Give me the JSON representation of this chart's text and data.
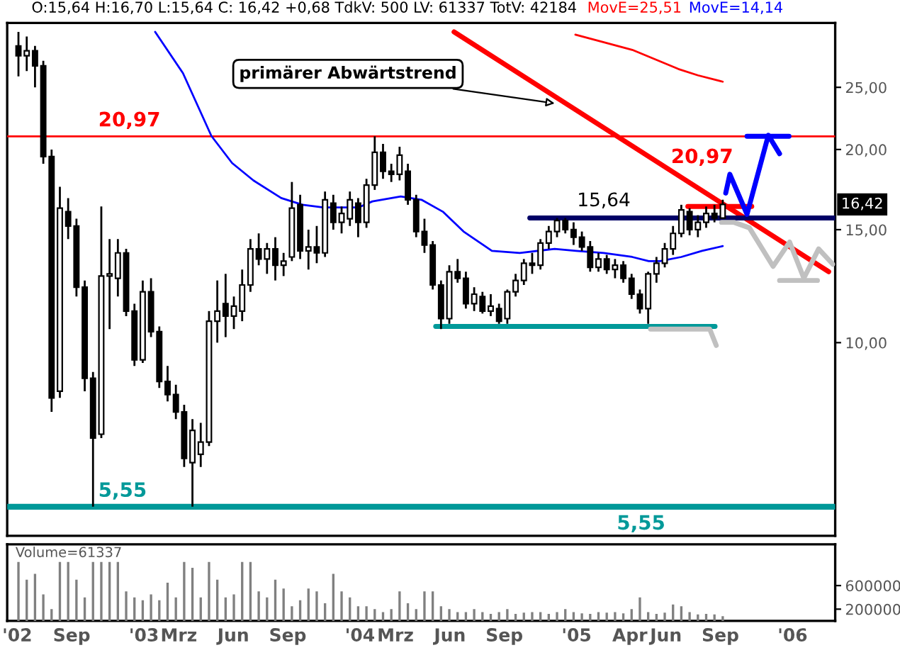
{
  "chart_data": [
    {
      "type": "candlestick",
      "title": "O:15,64 H:16,70 L:15,64 C: 16,42 +0,68 TdkV: 500 LV: 61337 TotV: 42184",
      "x": [
        "2002-06-03",
        "2002-06-17",
        "2002-07-01",
        "2002-07-15",
        "2002-07-29",
        "2002-08-12",
        "2002-08-26",
        "2002-09-09",
        "2002-09-23",
        "2002-10-07",
        "2002-10-21",
        "2002-11-04",
        "2002-11-18",
        "2002-12-02",
        "2002-12-16",
        "2002-12-30",
        "2003-01-13",
        "2003-01-27",
        "2003-02-10",
        "2003-02-24",
        "2003-03-10",
        "2003-03-24",
        "2003-04-07",
        "2003-04-21",
        "2003-05-05",
        "2003-05-19",
        "2003-06-02",
        "2003-06-16",
        "2003-06-30",
        "2003-07-14",
        "2003-07-28",
        "2003-08-11",
        "2003-08-25",
        "2003-09-08",
        "2003-09-22",
        "2003-10-06",
        "2003-10-20",
        "2003-11-03",
        "2003-11-17",
        "2003-12-01",
        "2003-12-15",
        "2003-12-29",
        "2004-01-12",
        "2004-01-26",
        "2004-02-09",
        "2004-02-23",
        "2004-03-08",
        "2004-03-22",
        "2004-04-05",
        "2004-04-19",
        "2004-05-03",
        "2004-05-17",
        "2004-05-31",
        "2004-06-14",
        "2004-06-28",
        "2004-07-12",
        "2004-07-26",
        "2004-08-09",
        "2004-08-23",
        "2004-09-06",
        "2004-09-20",
        "2004-10-04",
        "2004-10-18",
        "2004-11-01",
        "2004-11-15",
        "2004-11-29",
        "2004-12-13",
        "2004-12-27",
        "2005-01-10",
        "2005-01-24",
        "2005-02-07",
        "2005-02-21",
        "2005-03-07",
        "2005-03-21",
        "2005-04-04",
        "2005-04-18",
        "2005-05-02",
        "2005-05-16",
        "2005-05-30",
        "2005-06-13",
        "2005-06-27",
        "2005-07-11",
        "2005-07-25",
        "2005-08-08",
        "2005-08-22",
        "2005-09-05"
      ],
      "ohlc": [
        [
          29,
          30.5,
          26,
          28
        ],
        [
          28,
          30,
          26.5,
          28.5
        ],
        [
          28.5,
          29,
          25,
          27
        ],
        [
          27,
          27.5,
          19,
          19.5
        ],
        [
          19.5,
          20,
          7.8,
          8.2
        ],
        [
          8.4,
          17.5,
          8.2,
          16.2
        ],
        [
          16,
          16.8,
          14.5,
          15.2
        ],
        [
          15.2,
          15.6,
          11.8,
          12.2
        ],
        [
          12.2,
          12.5,
          8.4,
          8.8
        ],
        [
          8.8,
          9,
          5.55,
          7.1
        ],
        [
          7.2,
          16.3,
          7.1,
          12.7
        ],
        [
          12.7,
          14.5,
          10.5,
          12.8
        ],
        [
          12.6,
          14.5,
          11.8,
          13.8
        ],
        [
          13.8,
          14,
          11,
          11.2
        ],
        [
          11.2,
          11.5,
          9.2,
          9.4
        ],
        [
          9.4,
          12.5,
          9.3,
          12
        ],
        [
          12,
          12.6,
          10.2,
          10.4
        ],
        [
          10.4,
          10.6,
          8.5,
          8.7
        ],
        [
          8.7,
          9.2,
          8.1,
          8.3
        ],
        [
          8.3,
          8.6,
          7.6,
          7.8
        ],
        [
          7.8,
          8,
          6.4,
          6.6
        ],
        [
          6.5,
          7.6,
          5.55,
          7.3
        ],
        [
          6.7,
          7.5,
          6.4,
          7
        ],
        [
          7,
          11.2,
          6.9,
          10.8
        ],
        [
          10.8,
          12.5,
          10,
          11.2
        ],
        [
          11.5,
          12.8,
          10.2,
          11
        ],
        [
          11,
          11.8,
          10.5,
          11.4
        ],
        [
          11.2,
          13,
          10.8,
          12.3
        ],
        [
          12.3,
          14.5,
          12,
          14
        ],
        [
          14,
          14.8,
          13.2,
          13.5
        ],
        [
          13.5,
          14.3,
          12.8,
          14
        ],
        [
          14,
          14.6,
          12.5,
          13.2
        ],
        [
          13.2,
          13.8,
          12.7,
          13.4
        ],
        [
          13.6,
          17.8,
          13.4,
          16.2
        ],
        [
          16.4,
          17,
          13.5,
          13.9
        ],
        [
          13.9,
          15,
          13,
          14.1
        ],
        [
          14.1,
          15.2,
          13.3,
          13.8
        ],
        [
          13.8,
          17.2,
          13.6,
          16.7
        ],
        [
          16.5,
          17,
          15,
          15.4
        ],
        [
          15.4,
          16.3,
          14.8,
          15.9
        ],
        [
          15.6,
          17.2,
          15.2,
          16.7
        ],
        [
          16.5,
          16.8,
          14.6,
          15.4
        ],
        [
          15.4,
          18,
          15.1,
          17.6
        ],
        [
          17.6,
          20.97,
          17.3,
          19.8
        ],
        [
          19.8,
          20.4,
          18,
          18.5
        ],
        [
          18.5,
          19,
          17.8,
          18.3
        ],
        [
          18.3,
          20.2,
          17.9,
          19.6
        ],
        [
          18.5,
          19,
          16.4,
          16.7
        ],
        [
          16.7,
          17,
          14.6,
          14.9
        ],
        [
          14.9,
          15.6,
          13.8,
          14.2
        ],
        [
          14.2,
          14.4,
          12.1,
          12.3
        ],
        [
          12.3,
          12.5,
          10.5,
          10.9
        ],
        [
          10.9,
          13.2,
          10.7,
          12.9
        ],
        [
          12.9,
          13.5,
          12.4,
          12.6
        ],
        [
          12.6,
          12.9,
          11.3,
          11.5
        ],
        [
          11.5,
          12.2,
          11.2,
          11.9
        ],
        [
          11.8,
          12,
          11.1,
          11.2
        ],
        [
          11.2,
          11.9,
          11,
          11.4
        ],
        [
          11.3,
          11.5,
          10.7,
          10.8
        ],
        [
          10.9,
          12.1,
          10.7,
          12
        ],
        [
          12,
          12.8,
          11.8,
          12.5
        ],
        [
          12.5,
          13.5,
          12.3,
          13.3
        ],
        [
          13.3,
          13.8,
          12.8,
          13.2
        ],
        [
          13.2,
          14.5,
          13,
          14.3
        ],
        [
          14.3,
          15.2,
          14,
          14.9
        ],
        [
          14.9,
          15.64,
          14.6,
          15.5
        ],
        [
          15.5,
          15.64,
          14.8,
          15
        ],
        [
          15,
          15.4,
          14.2,
          14.6
        ],
        [
          14.6,
          14.9,
          13.9,
          14.1
        ],
        [
          14.1,
          14.4,
          12.9,
          13.1
        ],
        [
          13.1,
          13.8,
          12.9,
          13.5
        ],
        [
          13.5,
          13.7,
          12.8,
          13
        ],
        [
          13,
          13.5,
          12.6,
          13.2
        ],
        [
          13.2,
          13.4,
          12.4,
          12.6
        ],
        [
          12.6,
          12.8,
          11.7,
          11.9
        ],
        [
          11.9,
          12.1,
          11.1,
          11.3
        ],
        [
          11.3,
          12.9,
          10.7,
          12.8
        ],
        [
          12.8,
          13.6,
          12.4,
          13.3
        ],
        [
          13.3,
          14.3,
          13.1,
          14
        ],
        [
          14,
          15.2,
          13.7,
          14.8
        ],
        [
          14.8,
          16.4,
          14.6,
          16.1
        ],
        [
          16,
          16.2,
          14.7,
          15
        ],
        [
          15,
          15.8,
          14.6,
          15.4
        ],
        [
          15.4,
          16.3,
          15.1,
          15.9
        ],
        [
          15.9,
          16.4,
          15.4,
          15.64
        ],
        [
          15.64,
          16.7,
          15.64,
          16.42
        ]
      ],
      "series": [
        {
          "name": "MovE=25,51",
          "type": "line",
          "color": "#ff0000",
          "x": [
            "2004-12-30",
            "2005-02-15",
            "2005-04-05",
            "2005-06-22",
            "2005-07-25",
            "2005-09-05"
          ],
          "values": [
            30.2,
            29.4,
            28.6,
            26.7,
            26.1,
            25.51
          ]
        },
        {
          "name": "MovE=14,14",
          "type": "line",
          "color": "#0000ff",
          "x": [
            "2003-01-20",
            "2003-03-08",
            "2003-04-25",
            "2003-05-30",
            "2003-07-05",
            "2003-08-21",
            "2003-09-26",
            "2003-10-31",
            "2003-12-30",
            "2004-01-22",
            "2004-03-10",
            "2004-04-14",
            "2004-05-20",
            "2004-06-24",
            "2004-08-11",
            "2004-09-27",
            "2004-11-25",
            "2004-12-31",
            "2005-02-16",
            "2005-04-05",
            "2005-05-03",
            "2005-05-22",
            "2005-06-27",
            "2005-08-01",
            "2005-09-05"
          ],
          "values": [
            30.5,
            26.3,
            21.0,
            19.05,
            17.9,
            16.8,
            16.4,
            16.25,
            16.25,
            16.6,
            16.9,
            16.7,
            16.0,
            14.9,
            13.9,
            13.8,
            14.0,
            13.9,
            13.8,
            13.6,
            13.4,
            13.4,
            13.6,
            13.9,
            14.14
          ]
        },
        {
          "type": "line",
          "color": "#ff0000",
          "x": [
            "2004-06-08",
            "2006-03-03"
          ],
          "values": [
            30.5,
            12.9
          ]
        },
        {
          "type": "line",
          "color": "#000066",
          "x": [
            "2004-10-14",
            "2006-03-14"
          ],
          "values": [
            15.64,
            15.64
          ]
        },
        {
          "type": "line",
          "color": "#009999",
          "x": [
            "2004-05-08",
            "2005-08-23"
          ],
          "values": [
            10.6,
            10.6
          ]
        },
        {
          "type": "line",
          "color": "#ff0000",
          "x": [
            "2005-07-08",
            "2005-10-24"
          ],
          "values": [
            16.3,
            16.3
          ]
        },
        {
          "type": "line",
          "color": "#0000ff",
          "x": [
            "2005-09-10",
            "2005-09-17",
            "2005-10-16",
            "2005-11-21",
            "2005-12-10"
          ],
          "values": [
            17.1,
            18.3,
            15.85,
            21.05,
            19.7
          ]
        },
        {
          "type": "line",
          "color": "#0000ff",
          "x": [
            "2005-10-16",
            "2005-12-26"
          ],
          "values": [
            20.97,
            20.97
          ]
        },
        {
          "type": "line",
          "color": "#c0c0c0",
          "x": [
            "2005-09-03",
            "2005-09-24",
            "2005-10-20",
            "2005-11-29",
            "2005-12-27",
            "2006-01-20",
            "2006-02-14",
            "2006-03-10"
          ],
          "values": [
            15.4,
            15.4,
            15.1,
            13.15,
            14.35,
            12.6,
            14.0,
            13.25
          ]
        },
        {
          "type": "line",
          "color": "#c0c0c0",
          "x": [
            "2005-12-10",
            "2006-02-12"
          ],
          "values": [
            12.5,
            12.5
          ]
        },
        {
          "type": "line",
          "color": "#c0c0c0",
          "x": [
            "2005-05-06",
            "2005-08-14",
            "2005-08-25"
          ],
          "values": [
            10.5,
            10.5,
            9.9
          ]
        }
      ],
      "ref_lines": [
        {
          "axis": "y",
          "value": 20.97,
          "label": "20,97",
          "color": "#ff0000"
        },
        {
          "axis": "y",
          "value": 5.55,
          "label": "5,55",
          "color": "#009999"
        }
      ],
      "annotations": [
        {
          "text": "primärer Abwärtstrend",
          "x": "2004-11-25",
          "y": 23.6
        },
        {
          "text": "20,97",
          "x": "2005-04-10",
          "y": 20.97
        },
        {
          "text": "15,64",
          "x": "2005-02-16",
          "y": 15.64
        },
        {
          "text": "5,55",
          "x": "2005-04-20",
          "y": 5.55
        },
        {
          "text": "16,42",
          "y": 16.42
        }
      ],
      "log": true,
      "legend": "top",
      "tick_labels": "y",
      "xlim": [
        "2002-05-15",
        "2006-03-14"
      ],
      "ylim": [
        5.0,
        31.5
      ],
      "yticks": [
        {
          "value": 10,
          "label": "10,00"
        },
        {
          "value": 15,
          "label": "15,00"
        },
        {
          "value": 20,
          "label": "20,00"
        },
        {
          "value": 25,
          "label": "25,00"
        }
      ]
    },
    {
      "type": "bar",
      "title": "Volume=61337",
      "color": "#808080",
      "x": [
        "2002-06-03",
        "2002-06-17",
        "2002-07-01",
        "2002-07-15",
        "2002-07-29",
        "2002-08-12",
        "2002-08-26",
        "2002-09-09",
        "2002-09-23",
        "2002-10-07",
        "2002-10-21",
        "2002-11-04",
        "2002-11-18",
        "2002-12-02",
        "2002-12-16",
        "2002-12-30",
        "2003-01-13",
        "2003-01-27",
        "2003-02-10",
        "2003-02-24",
        "2003-03-10",
        "2003-03-24",
        "2003-04-07",
        "2003-04-21",
        "2003-05-05",
        "2003-05-19",
        "2003-06-02",
        "2003-06-16",
        "2003-06-30",
        "2003-07-14",
        "2003-07-28",
        "2003-08-11",
        "2003-08-25",
        "2003-09-08",
        "2003-09-22",
        "2003-10-06",
        "2003-10-20",
        "2003-11-03",
        "2003-11-17",
        "2003-12-01",
        "2003-12-15",
        "2003-12-29",
        "2004-01-12",
        "2004-01-26",
        "2004-02-09",
        "2004-02-23",
        "2004-03-08",
        "2004-03-22",
        "2004-04-05",
        "2004-04-19",
        "2004-05-03",
        "2004-05-17",
        "2004-05-31",
        "2004-06-14",
        "2004-06-28",
        "2004-07-12",
        "2004-07-26",
        "2004-08-09",
        "2004-08-23",
        "2004-09-06",
        "2004-09-20",
        "2004-10-04",
        "2004-10-18",
        "2004-11-01",
        "2004-11-15",
        "2004-11-29",
        "2004-12-13",
        "2004-12-27",
        "2005-01-10",
        "2005-01-24",
        "2005-02-07",
        "2005-02-21",
        "2005-03-07",
        "2005-03-21",
        "2005-04-04",
        "2005-04-18",
        "2005-05-02",
        "2005-05-16",
        "2005-05-30",
        "2005-06-13",
        "2005-06-27",
        "2005-07-11",
        "2005-07-25",
        "2005-08-08",
        "2005-08-22",
        "2005-09-05"
      ],
      "values": [
        1000000,
        700000,
        800000,
        450000,
        200000,
        1000000,
        1000000,
        700000,
        400000,
        1000000,
        1000000,
        1000000,
        1000000,
        500000,
        400000,
        350000,
        450000,
        350000,
        650000,
        400000,
        1000000,
        900000,
        400000,
        1000000,
        700000,
        400000,
        450000,
        1000000,
        1000000,
        500000,
        400000,
        700000,
        550000,
        250000,
        350000,
        550000,
        500000,
        300000,
        800000,
        500000,
        400000,
        250000,
        250000,
        200000,
        150000,
        200000,
        500000,
        300000,
        200000,
        500000,
        500000,
        250000,
        200000,
        150000,
        150000,
        200000,
        150000,
        120000,
        150000,
        200000,
        120000,
        140000,
        150000,
        150000,
        120000,
        150000,
        200000,
        150000,
        130000,
        120000,
        150000,
        140000,
        150000,
        130000,
        200000,
        400000,
        150000,
        120000,
        140000,
        280000,
        250000,
        150000,
        110000,
        120000,
        110000,
        80000
      ],
      "xlim": [
        "2002-05-15",
        "2006-03-14"
      ],
      "ylim": [
        0,
        1300000
      ],
      "yticks": [
        200000,
        600000
      ],
      "xticks": [
        {
          "value": "2002-06-01",
          "label": "'02"
        },
        {
          "value": "2002-09-01",
          "label": "Sep"
        },
        {
          "value": "2003-01-01",
          "label": "'03"
        },
        {
          "value": "2003-03-01",
          "label": "Mrz"
        },
        {
          "value": "2003-06-01",
          "label": "Jun"
        },
        {
          "value": "2003-09-01",
          "label": "Sep"
        },
        {
          "value": "2004-01-01",
          "label": "'04"
        },
        {
          "value": "2004-03-01",
          "label": "Mrz"
        },
        {
          "value": "2004-06-01",
          "label": "Jun"
        },
        {
          "value": "2004-09-01",
          "label": "Sep"
        },
        {
          "value": "2005-01-01",
          "label": "'05"
        },
        {
          "value": "2005-04-01",
          "label": "Apr"
        },
        {
          "value": "2005-06-01",
          "label": "Jun"
        },
        {
          "value": "2005-09-01",
          "label": "Sep"
        },
        {
          "value": "2006-01-01",
          "label": "'06"
        }
      ]
    }
  ]
}
